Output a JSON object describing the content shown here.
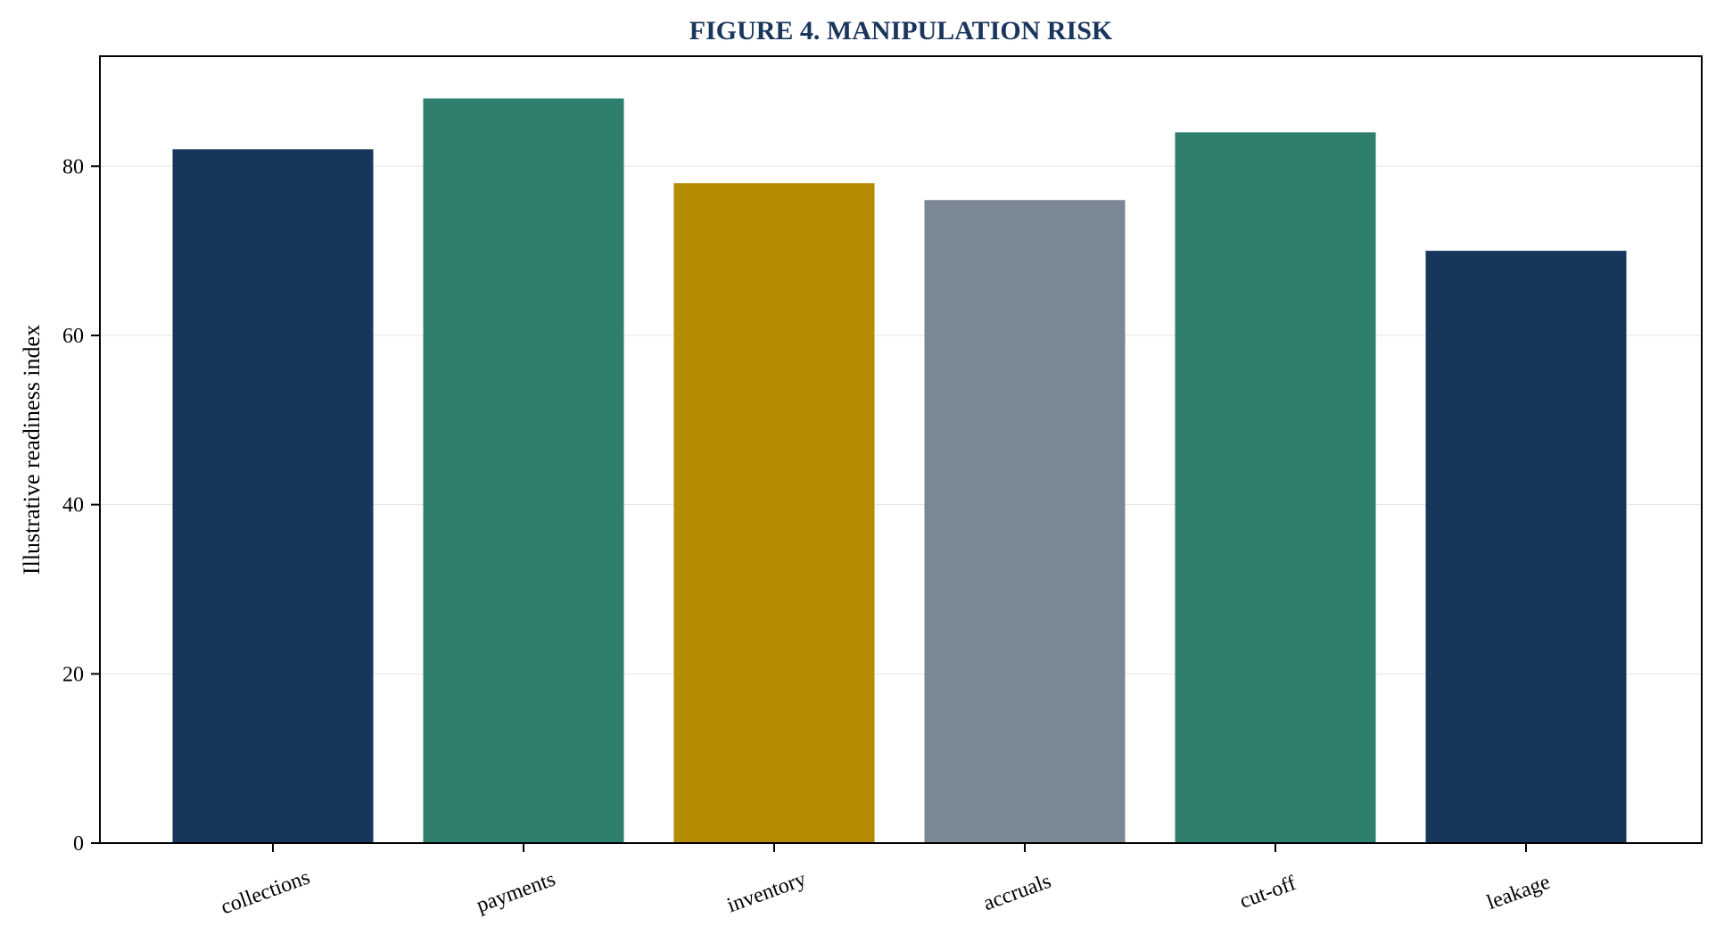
{
  "chart_data": {
    "type": "bar",
    "title": "FIGURE 4. MANIPULATION RISK",
    "xlabel": "",
    "ylabel": "Illustrative readiness index",
    "categories": [
      "collections",
      "payments",
      "inventory",
      "accruals",
      "cut-off",
      "leakage"
    ],
    "values": [
      82,
      88,
      78,
      76,
      84,
      70
    ],
    "colors": [
      "#17365c",
      "#2e7f6e",
      "#b48a00",
      "#7a8795",
      "#2e7f6e",
      "#17365c"
    ],
    "ylim": [
      0,
      93
    ],
    "yticks": [
      0,
      20,
      40,
      60,
      80
    ],
    "grid": true,
    "legend": "none"
  }
}
